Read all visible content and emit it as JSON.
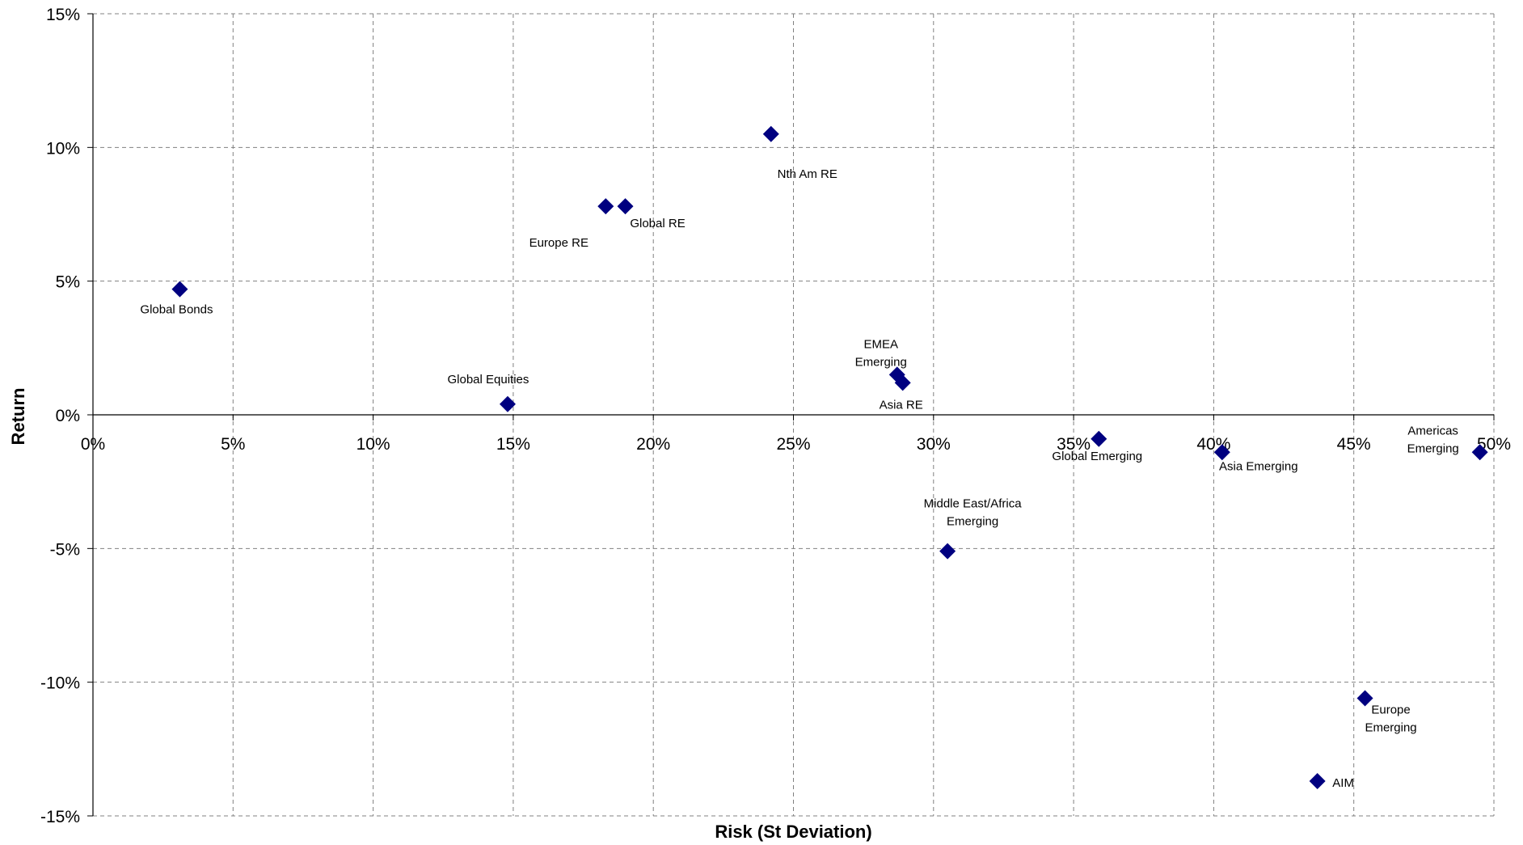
{
  "chart_data": {
    "type": "scatter",
    "title": "",
    "xlabel": "Risk (St Deviation)",
    "ylabel": "Return",
    "xlim": [
      0,
      50
    ],
    "ylim": [
      -15,
      15
    ],
    "x_ticks": [
      "0%",
      "5%",
      "10%",
      "15%",
      "20%",
      "25%",
      "30%",
      "35%",
      "40%",
      "45%",
      "50%"
    ],
    "y_ticks": [
      "15%",
      "10%",
      "5%",
      "0%",
      "-5%",
      "-10%",
      "-15%"
    ],
    "grid": true,
    "legend": "none",
    "marker_color": "#000080",
    "points": [
      {
        "label": [
          "Global Bonds"
        ],
        "x": 3.1,
        "y": 4.7
      },
      {
        "label": [
          "Global Equities"
        ],
        "x": 14.8,
        "y": 0.4
      },
      {
        "label": [
          "Europe RE"
        ],
        "x": 18.3,
        "y": 7.8
      },
      {
        "label": [
          "Global RE"
        ],
        "x": 19.0,
        "y": 7.8
      },
      {
        "label": [
          "Nth Am RE"
        ],
        "x": 24.2,
        "y": 10.5
      },
      {
        "label": [
          "EMEA",
          "Emerging"
        ],
        "x": 28.7,
        "y": 1.5
      },
      {
        "label": [
          "Asia RE"
        ],
        "x": 28.9,
        "y": 1.2
      },
      {
        "label": [
          "Middle East/Africa",
          "Emerging"
        ],
        "x": 30.5,
        "y": -5.1
      },
      {
        "label": [
          "Global Emerging"
        ],
        "x": 35.9,
        "y": -0.9
      },
      {
        "label": [
          "Asia Emerging"
        ],
        "x": 40.3,
        "y": -1.4
      },
      {
        "label": [
          "AIM"
        ],
        "x": 43.7,
        "y": -13.7
      },
      {
        "label": [
          "Europe",
          "Emerging"
        ],
        "x": 45.4,
        "y": -10.6
      },
      {
        "label": [
          "Americas",
          "Emerging"
        ],
        "x": 49.5,
        "y": -1.4
      }
    ]
  }
}
